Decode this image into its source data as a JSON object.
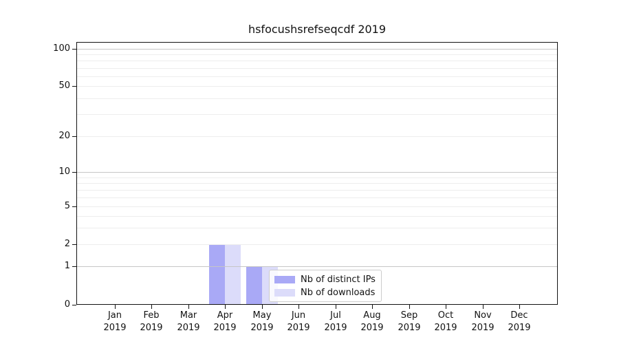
{
  "title": "hsfocushsrefseqcdf 2019",
  "chart_data": {
    "type": "bar",
    "title": "hsfocushsrefseqcdf 2019",
    "categories": [
      "Jan",
      "Feb",
      "Mar",
      "Apr",
      "May",
      "Jun",
      "Jul",
      "Aug",
      "Sep",
      "Oct",
      "Nov",
      "Dec"
    ],
    "category_year": "2019",
    "series": [
      {
        "name": "Nb of distinct IPs",
        "color": "#a9a9f6",
        "values": [
          0,
          0,
          0,
          2,
          1,
          0,
          0,
          0,
          0,
          0,
          0,
          0
        ]
      },
      {
        "name": "Nb of downloads",
        "color": "#dcdcfa",
        "values": [
          0,
          0,
          0,
          2,
          1,
          0,
          0,
          0,
          0,
          0,
          0,
          0
        ]
      }
    ],
    "y_axis": {
      "ticks": [
        100,
        50,
        20,
        10,
        5,
        2,
        1,
        0
      ],
      "scale": "log above 1, linear segment 0-1",
      "tick_fractions": {
        "0": 1.0,
        "1": 0.853,
        "2": 0.77,
        "5": 0.626,
        "10": 0.495,
        "20": 0.359,
        "50": 0.168,
        "100": 0.026
      },
      "minor_gridlines": [
        3,
        4,
        6,
        7,
        8,
        9,
        30,
        40,
        60,
        70,
        80,
        90
      ]
    },
    "xlabel": "",
    "ylabel": "",
    "grid": true,
    "legend": {
      "position": "lower center-right, inside plot",
      "entries": [
        "Nb of distinct IPs",
        "Nb of downloads"
      ]
    },
    "colors": {
      "decade_gridline": "#c6c6c6",
      "sub_gridline": "#ededed",
      "spine": "#111111",
      "text": "#111111",
      "background": "#ffffff"
    }
  }
}
